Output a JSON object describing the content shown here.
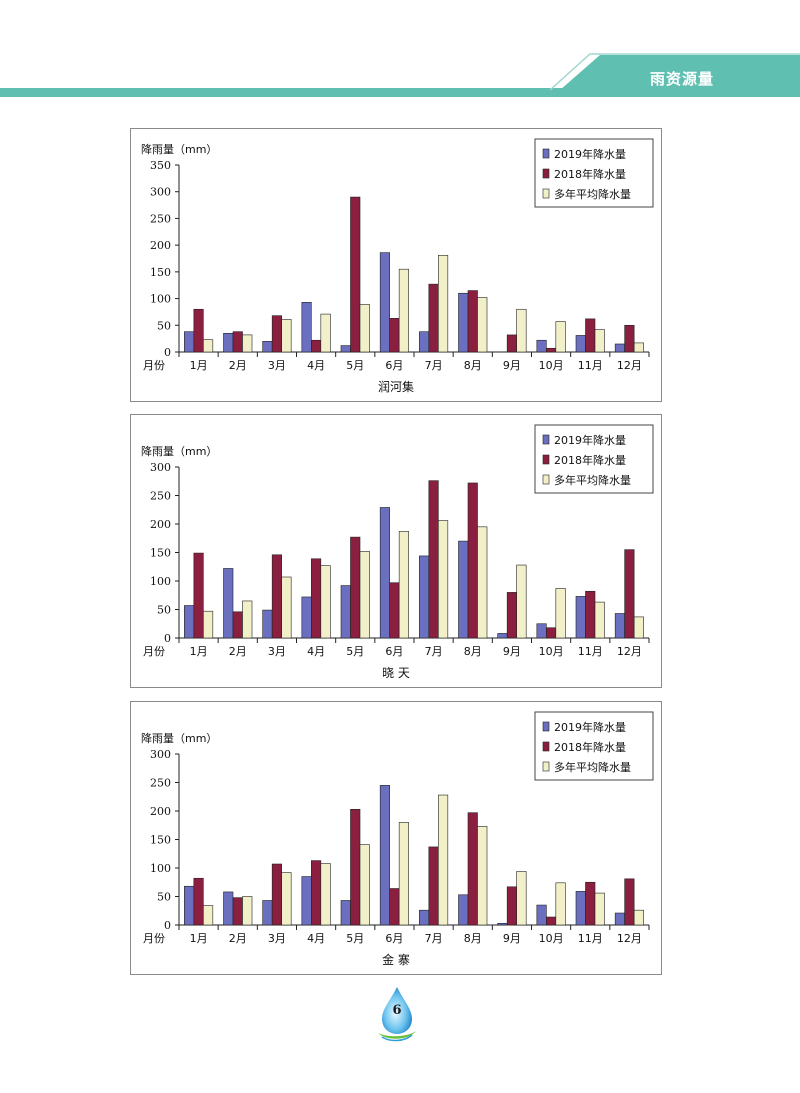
{
  "header": {
    "title": "雨资源量",
    "accent_color": "#5fbfb1"
  },
  "page_number": "6",
  "chart_data": [
    {
      "type": "bar",
      "title": "润河集",
      "ylabel": "降雨量（mm）",
      "xlabel": "月份",
      "ylim": [
        0,
        350
      ],
      "yticks": [
        0,
        50,
        100,
        150,
        200,
        250,
        300,
        350
      ],
      "legend_position": "top-right",
      "categories": [
        "1月",
        "2月",
        "3月",
        "4月",
        "5月",
        "6月",
        "7月",
        "8月",
        "9月",
        "10月",
        "11月",
        "12月"
      ],
      "series": [
        {
          "name": "2019年降水量",
          "color": "#6b6fc0",
          "values": [
            38,
            35,
            20,
            93,
            12,
            186,
            38,
            110,
            0,
            22,
            31,
            15
          ]
        },
        {
          "name": "2018年降水量",
          "color": "#8b1f3f",
          "values": [
            80,
            38,
            68,
            22,
            290,
            63,
            127,
            115,
            32,
            7,
            62,
            50
          ]
        },
        {
          "name": "多年平均降水量",
          "color": "#f2f0c8",
          "values": [
            23,
            32,
            61,
            71,
            89,
            155,
            181,
            102,
            80,
            57,
            42,
            17
          ]
        }
      ]
    },
    {
      "type": "bar",
      "title": "晓 天",
      "ylabel": "降雨量（mm）",
      "xlabel": "月份",
      "ylim": [
        0,
        300
      ],
      "yticks": [
        0,
        50,
        100,
        150,
        200,
        250,
        300
      ],
      "legend_position": "top-right",
      "categories": [
        "1月",
        "2月",
        "3月",
        "4月",
        "5月",
        "6月",
        "7月",
        "8月",
        "9月",
        "10月",
        "11月",
        "12月"
      ],
      "series": [
        {
          "name": "2019年降水量",
          "color": "#6b6fc0",
          "values": [
            57,
            122,
            49,
            72,
            92,
            229,
            144,
            170,
            8,
            25,
            73,
            43
          ]
        },
        {
          "name": "2018年降水量",
          "color": "#8b1f3f",
          "values": [
            149,
            46,
            146,
            139,
            177,
            97,
            276,
            272,
            80,
            18,
            82,
            155
          ]
        },
        {
          "name": "多年平均降水量",
          "color": "#f2f0c8",
          "values": [
            47,
            65,
            107,
            127,
            152,
            187,
            206,
            195,
            128,
            87,
            63,
            37
          ]
        }
      ]
    },
    {
      "type": "bar",
      "title": "金 寨",
      "ylabel": "降雨量（mm）",
      "xlabel": "月份",
      "ylim": [
        0,
        300
      ],
      "yticks": [
        0,
        50,
        100,
        150,
        200,
        250,
        300
      ],
      "legend_position": "top-right",
      "categories": [
        "1月",
        "2月",
        "3月",
        "4月",
        "5月",
        "6月",
        "7月",
        "8月",
        "9月",
        "10月",
        "11月",
        "12月"
      ],
      "series": [
        {
          "name": "2019年降水量",
          "color": "#6b6fc0",
          "values": [
            68,
            58,
            43,
            85,
            43,
            245,
            26,
            53,
            3,
            35,
            59,
            21
          ]
        },
        {
          "name": "2018年降水量",
          "color": "#8b1f3f",
          "values": [
            82,
            48,
            107,
            113,
            203,
            64,
            137,
            197,
            67,
            14,
            75,
            81
          ]
        },
        {
          "name": "多年平均降水量",
          "color": "#f2f0c8",
          "values": [
            34,
            50,
            92,
            108,
            141,
            180,
            228,
            173,
            94,
            74,
            56,
            26
          ]
        }
      ]
    }
  ]
}
